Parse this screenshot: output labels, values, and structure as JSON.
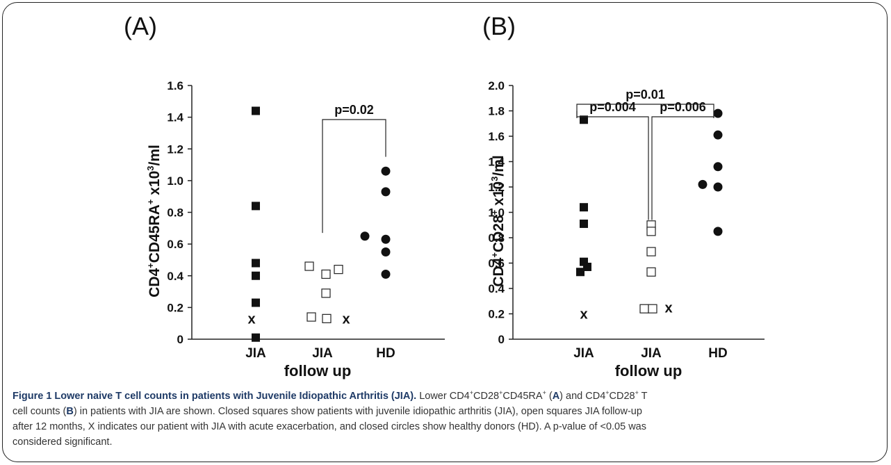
{
  "chart_data": [
    {
      "type": "scatter",
      "panel_label": "(A)",
      "ylabel": "CD4+CD45RA+ x10³/ml",
      "xlabel": "follow up",
      "categories": [
        "JIA",
        "JIA",
        "HD"
      ],
      "ylim": [
        0,
        1.6
      ],
      "yticks": [
        "0",
        "0.2",
        "0.4",
        "0.6",
        "0.8",
        "1.0",
        "1.2",
        "1.4",
        "1.6"
      ],
      "series": [
        {
          "marker": "filled-square",
          "category": 0,
          "values": [
            1.44,
            0.84,
            0.48,
            0.4,
            0.23,
            0.01
          ]
        },
        {
          "marker": "open-square",
          "category": 1,
          "values": [
            0.46,
            0.41,
            0.44,
            0.29,
            0.14,
            0.13
          ]
        },
        {
          "marker": "filled-circle",
          "category": 2,
          "values": [
            1.06,
            0.93,
            0.65,
            0.63,
            0.55,
            0.41
          ]
        },
        {
          "marker": "x",
          "category": 0,
          "values": [
            0.13
          ]
        },
        {
          "marker": "x",
          "category": 1,
          "values": [
            0.13
          ]
        }
      ],
      "annotations": [
        {
          "text": "p=0.02",
          "from": 1,
          "to": 2
        }
      ]
    },
    {
      "type": "scatter",
      "panel_label": "(B)",
      "ylabel": "CD4+CD28+ x10³/ml",
      "xlabel": "follow up",
      "categories": [
        "JIA",
        "JIA",
        "HD"
      ],
      "ylim": [
        0,
        2.0
      ],
      "yticks": [
        "0",
        "0.2",
        "0.4",
        "0.6",
        "0.8",
        "1.0",
        "1.2",
        "1.4",
        "1.6",
        "1.8",
        "2.0"
      ],
      "series": [
        {
          "marker": "filled-square",
          "category": 0,
          "values": [
            1.73,
            1.04,
            0.91,
            0.61,
            0.57,
            0.53
          ]
        },
        {
          "marker": "open-square",
          "category": 1,
          "values": [
            0.9,
            0.85,
            0.69,
            0.53,
            0.24,
            0.24
          ]
        },
        {
          "marker": "filled-circle",
          "category": 2,
          "values": [
            1.78,
            1.61,
            1.36,
            1.22,
            1.2,
            0.85
          ]
        },
        {
          "marker": "x",
          "category": 0,
          "values": [
            0.2
          ]
        },
        {
          "marker": "x",
          "category": 1,
          "values": [
            0.25
          ]
        }
      ],
      "annotations": [
        {
          "text": "p=0.01",
          "from": 0,
          "to": 2
        },
        {
          "text": "p=0.004",
          "from": 0,
          "to": 1
        },
        {
          "text": "p=0.006",
          "from": 1,
          "to": 2
        }
      ]
    }
  ],
  "caption": {
    "title": "Figure 1 Lower naive T cell counts in patients with Juvenile Idiopathic Arthritis (JIA).",
    "line1_a": " Lower CD4",
    "line1_b": "CD28",
    "line1_c": "CD45RA",
    "line1_d": " (",
    "A": "A",
    "line1_e": ") and CD4",
    "line1_f": "CD28",
    "line1_g": " T",
    "line2_a": "cell counts (",
    "B": "B",
    "line2_b": ") in patients with JIA are shown. Closed squares show patients with juvenile idiopathic arthritis (JIA), open squares JIA follow-up",
    "line3": "after 12 months, X indicates our patient with JIA with acute exacerbation, and closed circles show healthy donors (HD). A p-value of <0.05 was",
    "line4": "considered significant.",
    "plus": "+"
  }
}
